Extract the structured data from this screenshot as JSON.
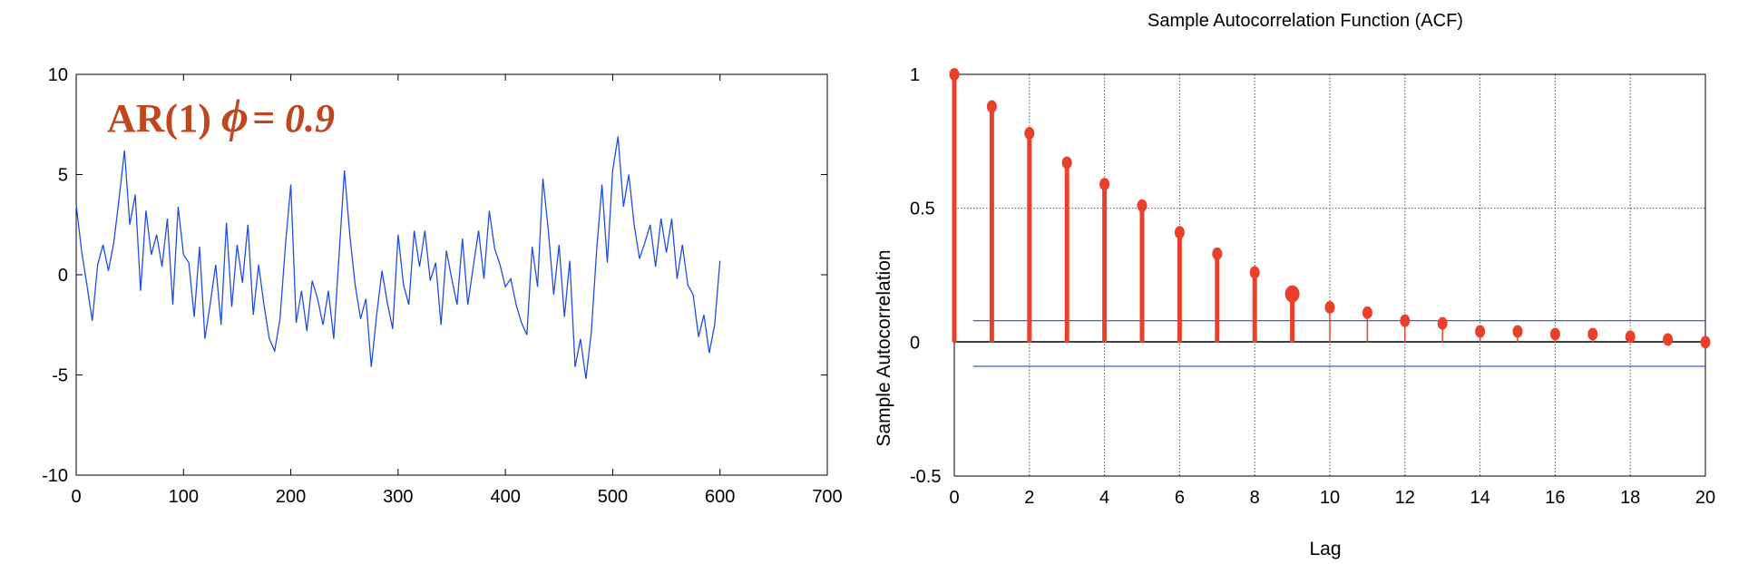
{
  "chart_data": [
    {
      "type": "line",
      "title": "",
      "xlabel": "",
      "ylabel": "",
      "xlim": [
        0,
        700
      ],
      "ylim": [
        -10,
        10
      ],
      "xticks": [
        0,
        100,
        200,
        300,
        400,
        500,
        600,
        700
      ],
      "yticks": [
        -10,
        -5,
        0,
        5,
        10
      ],
      "grid": false,
      "annotation": {
        "prefix": "AR(1) ",
        "symbol": "ϕ",
        "suffix": "= 0.9"
      },
      "colors": {
        "series": "#1f4fe0",
        "annotation": "#c0461f"
      },
      "series": [
        {
          "x": [
            0,
            5,
            10,
            15,
            20,
            25,
            30,
            35,
            40,
            45,
            50,
            55,
            60,
            65,
            70,
            75,
            80,
            85,
            90,
            95,
            100,
            105,
            110,
            115,
            120,
            125,
            130,
            135,
            140,
            145,
            150,
            155,
            160,
            165,
            170,
            175,
            180,
            185,
            190,
            195,
            200,
            205,
            210,
            215,
            220,
            225,
            230,
            235,
            240,
            245,
            250,
            255,
            260,
            265,
            270,
            275,
            280,
            285,
            290,
            295,
            300,
            305,
            310,
            315,
            320,
            325,
            330,
            335,
            340,
            345,
            350,
            355,
            360,
            365,
            370,
            375,
            380,
            385,
            390,
            395,
            400,
            405,
            410,
            415,
            420,
            425,
            430,
            435,
            440,
            445,
            450,
            455,
            460,
            465,
            470,
            475,
            480,
            485,
            490,
            495,
            500,
            505,
            510,
            515,
            520,
            525,
            530,
            535,
            540,
            545,
            550,
            555,
            560,
            565,
            570,
            575,
            580,
            585,
            590,
            595,
            600
          ],
          "y": [
            3.5,
            1.2,
            -0.5,
            -2.3,
            0.5,
            1.5,
            0.2,
            1.6,
            3.8,
            6.2,
            2.5,
            4,
            -0.8,
            3.2,
            1,
            2,
            0.4,
            2.8,
            -1.5,
            3.4,
            1,
            0.6,
            -2.1,
            1.4,
            -3.2,
            -1.4,
            0.5,
            -2.5,
            2.6,
            -1.6,
            1.5,
            -0.4,
            2.5,
            -2,
            0.5,
            -1.5,
            -3.2,
            -3.8,
            -2.2,
            1.5,
            4.5,
            -2.4,
            -0.8,
            -2.8,
            -0.3,
            -1.2,
            -2.5,
            -0.8,
            -3.2,
            1,
            5.2,
            2,
            -0.5,
            -2.2,
            -1.2,
            -4.6,
            -2,
            0.2,
            -1.4,
            -2.7,
            2,
            -0.5,
            -1.5,
            2.2,
            0.4,
            2.2,
            -0.3,
            0.6,
            -2.5,
            1.2,
            -0.2,
            -1.5,
            1.8,
            -1.5,
            0.4,
            2.2,
            -0.2,
            3.2,
            1.3,
            0.5,
            -0.6,
            -0.2,
            -1.5,
            -2.4,
            -3,
            1.4,
            -0.6,
            4.8,
            2.2,
            -1,
            1.5,
            -2.1,
            0.7,
            -4.6,
            -3.2,
            -5.2,
            -2.9,
            1.2,
            4.5,
            0.6,
            5.2,
            6.9,
            3.4,
            5,
            2.5,
            0.8,
            1.6,
            2.5,
            0.4,
            2.8,
            1.1,
            2.8,
            -0.2,
            1.5,
            -0.5,
            -1,
            -3.1,
            -2,
            -3.9,
            -2.5,
            0.7
          ]
        }
      ]
    },
    {
      "type": "stem",
      "title": "Sample Autocorrelation Function (ACF)",
      "xlabel": "Lag",
      "ylabel": "Sample Autocorrelation",
      "xlim": [
        0,
        20
      ],
      "ylim": [
        -0.5,
        1
      ],
      "xticks": [
        0,
        2,
        4,
        6,
        8,
        10,
        12,
        14,
        16,
        18,
        20
      ],
      "yticks": [
        1,
        0.5,
        0,
        -0.5
      ],
      "ytick_labels": [
        "1",
        "0.5",
        "0",
        "-0.5"
      ],
      "grid": true,
      "lags": [
        0,
        1,
        2,
        3,
        4,
        5,
        6,
        7,
        8,
        9,
        10,
        11,
        12,
        13,
        14,
        15,
        16,
        17,
        18,
        19,
        20
      ],
      "acf": [
        1.0,
        0.88,
        0.78,
        0.67,
        0.59,
        0.51,
        0.41,
        0.33,
        0.26,
        0.18,
        0.13,
        0.11,
        0.08,
        0.07,
        0.04,
        0.04,
        0.03,
        0.03,
        0.02,
        0.01,
        0.0
      ],
      "bounds": [
        0.08,
        -0.09
      ],
      "colors": {
        "stems": "#e8402a",
        "bounds": "#1f4fe0"
      }
    }
  ]
}
